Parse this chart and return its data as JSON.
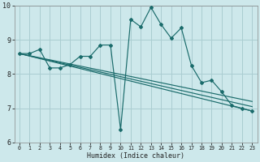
{
  "xlabel": "Humidex (Indice chaleur)",
  "bg_color": "#cde8eb",
  "grid_color": "#aacdd1",
  "line_color": "#1a6b6b",
  "xlim": [
    -0.5,
    23.5
  ],
  "ylim": [
    6,
    10
  ],
  "xticks": [
    0,
    1,
    2,
    3,
    4,
    5,
    6,
    7,
    8,
    9,
    10,
    11,
    12,
    13,
    14,
    15,
    16,
    17,
    18,
    19,
    20,
    21,
    22,
    23
  ],
  "yticks": [
    6,
    7,
    8,
    9,
    10
  ],
  "series_main": {
    "x": [
      0,
      1,
      2,
      3,
      4,
      5,
      6,
      7,
      8,
      9,
      10,
      11,
      12,
      13,
      14,
      15,
      16,
      17,
      18,
      19,
      20,
      21,
      22,
      23
    ],
    "y": [
      8.6,
      8.6,
      8.72,
      8.18,
      8.18,
      8.28,
      8.52,
      8.52,
      8.85,
      8.85,
      6.38,
      9.6,
      9.38,
      9.95,
      9.45,
      9.05,
      9.35,
      8.25,
      7.75,
      7.82,
      7.48,
      7.08,
      7.0,
      6.92
    ]
  },
  "lines": [
    {
      "x": [
        0,
        23
      ],
      "y": [
        8.6,
        7.05
      ]
    },
    {
      "x": [
        0,
        23
      ],
      "y": [
        8.6,
        7.2
      ]
    },
    {
      "x": [
        0,
        23
      ],
      "y": [
        8.6,
        6.92
      ]
    }
  ]
}
